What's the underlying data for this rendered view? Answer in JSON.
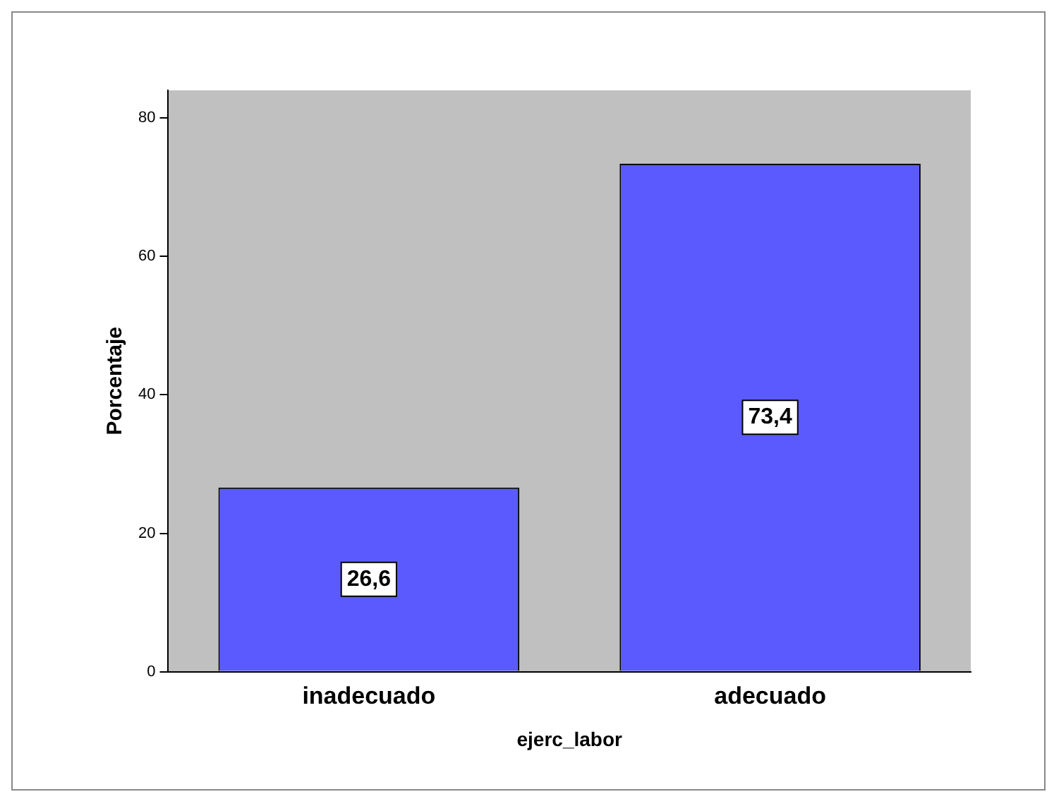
{
  "chart_data": {
    "type": "bar",
    "xlabel": "ejerc_labor",
    "ylabel": "Porcentaje",
    "categories": [
      "inadecuado",
      "adecuado"
    ],
    "values": [
      26.6,
      73.4
    ],
    "value_labels": [
      "26,6",
      "73,4"
    ],
    "color": "#5a5aff",
    "ylim": [
      0,
      84
    ],
    "yticks": [
      0,
      20,
      40,
      60,
      80
    ],
    "grid": false,
    "legend": false
  }
}
